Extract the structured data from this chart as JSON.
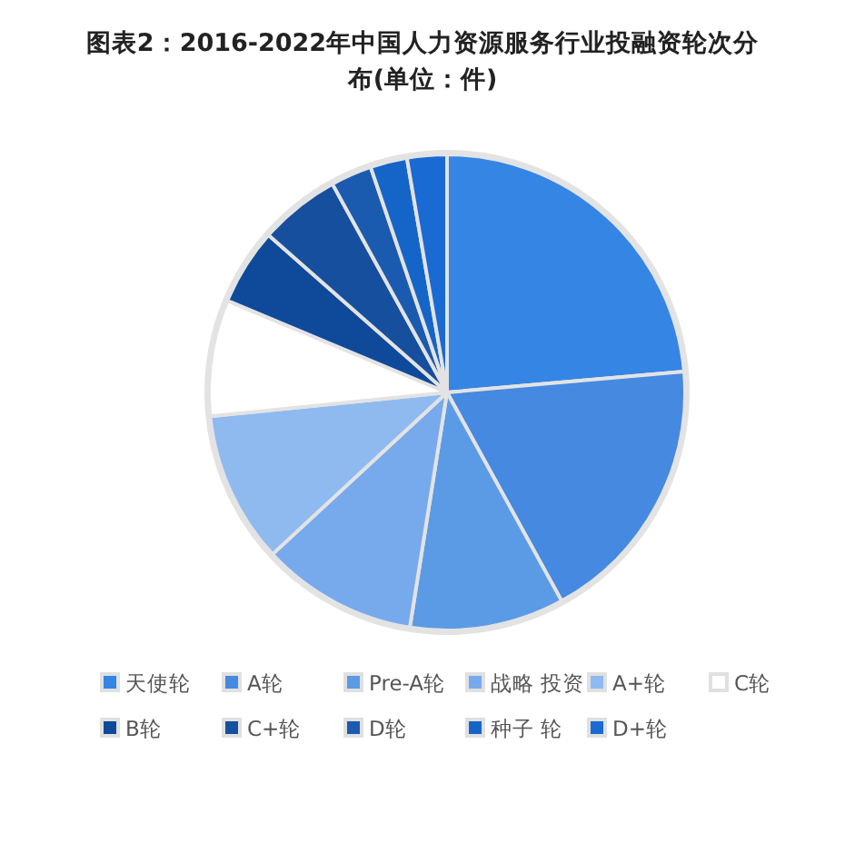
{
  "chart_data": {
    "type": "pie",
    "title": "图表2：2016-2022年中国人力资源服务行业投融资轮次分布(单位：件)",
    "categories": [
      "天使轮",
      "A轮",
      "Pre-A轮",
      "战略 投资",
      "A+轮",
      "C轮",
      "B轮",
      "C+轮",
      "D轮",
      "种子 轮",
      "D+轮"
    ],
    "values": [
      23.6,
      18.4,
      10.5,
      10.6,
      10.3,
      7.9,
      5.2,
      5.5,
      2.8,
      2.5,
      2.7
    ],
    "colors": [
      "#3585e5",
      "#4589e0",
      "#5b9be6",
      "#77aaec",
      "#8fbaf0",
      "#ffffff",
      "#0f4a9a",
      "#164f9e",
      "#1a5bb0",
      "#1565c8",
      "#1a6ad4"
    ],
    "legend": "bottom"
  }
}
